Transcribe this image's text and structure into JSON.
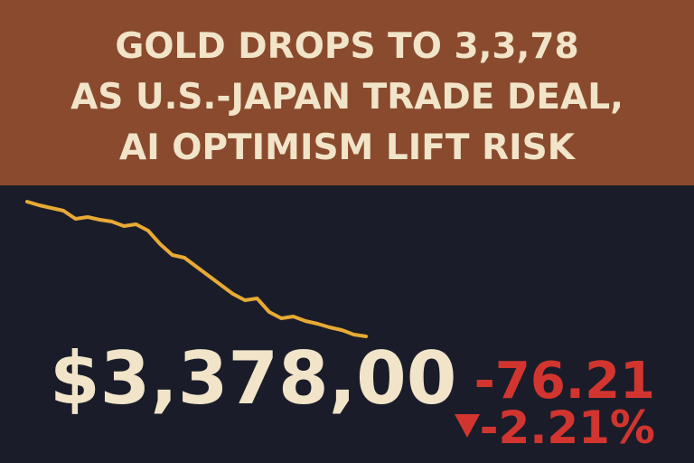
{
  "headline": {
    "lines": [
      "GOLD DROPS TO 3,3,78",
      "AS U.S.-JAPAN TRADE DEAL,",
      "AI OPTIMISM LIFT RISK"
    ]
  },
  "price": "$3,378,00",
  "change": "-76.21",
  "change_percent": "-2.21%",
  "chart_data": {
    "type": "line",
    "color": "#e8aa35",
    "values": [
      177,
      173,
      170,
      167,
      158,
      160,
      157,
      155,
      150,
      152,
      145,
      130,
      118,
      115,
      105,
      95,
      85,
      75,
      68,
      70,
      55,
      48,
      50,
      45,
      42,
      38,
      35,
      30,
      28
    ]
  }
}
